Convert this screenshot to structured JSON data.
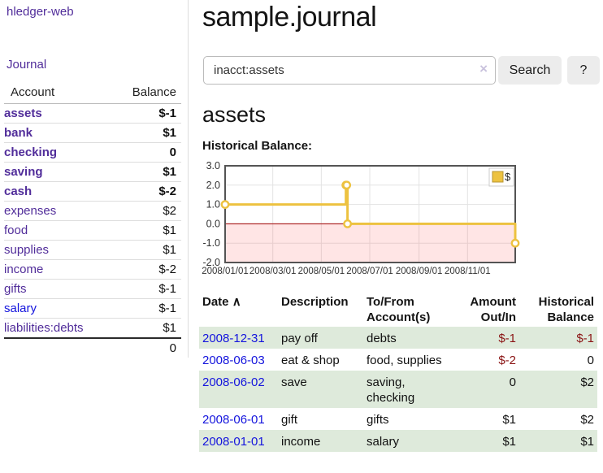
{
  "app": {
    "brand": "hledger-web",
    "nav_journal": "Journal"
  },
  "sidebar": {
    "accounts_table": {
      "col_account": "Account",
      "col_balance": "Balance",
      "rows": [
        {
          "name": "assets",
          "indent": 1,
          "bold": true,
          "balance": "$-1",
          "neg": "strong"
        },
        {
          "name": "bank",
          "indent": 2,
          "bold": true,
          "balance": "$1",
          "neg": ""
        },
        {
          "name": "checking",
          "indent": 3,
          "bold": true,
          "balance": "0",
          "neg": ""
        },
        {
          "name": "saving",
          "indent": 3,
          "bold": true,
          "balance": "$1",
          "neg": ""
        },
        {
          "name": "cash",
          "indent": 2,
          "bold": true,
          "balance": "$-2",
          "neg": "strong"
        },
        {
          "name": "expenses",
          "indent": 1,
          "bold": false,
          "balance": "$2",
          "neg": ""
        },
        {
          "name": "food",
          "indent": 2,
          "bold": false,
          "balance": "$1",
          "neg": ""
        },
        {
          "name": "supplies",
          "indent": 2,
          "bold": false,
          "balance": "$1",
          "neg": ""
        },
        {
          "name": "income",
          "indent": 1,
          "bold": false,
          "balance": "$-2",
          "neg": "soft"
        },
        {
          "name": "gifts",
          "indent": 2,
          "bold": false,
          "balance": "$-1",
          "neg": "soft"
        },
        {
          "name": "salary",
          "indent": 2,
          "bold": false,
          "balance": "$-1",
          "neg": "soft",
          "link_color": "blue"
        },
        {
          "name": "liabilities:debts",
          "indent": 1,
          "bold": false,
          "balance": "$1",
          "neg": ""
        }
      ],
      "total": "0"
    }
  },
  "header": {
    "title": "sample.journal"
  },
  "search": {
    "value": "inacct:assets",
    "clear_label": "×",
    "search_button": "Search",
    "help_button": "?"
  },
  "account_page": {
    "heading": "assets",
    "chart_label": "Historical Balance:"
  },
  "chart_data": {
    "type": "line",
    "title": "Historical Balance",
    "style": "step",
    "series": [
      {
        "name": "$",
        "color": "#edc240",
        "points": [
          [
            "2008-01-01",
            1
          ],
          [
            "2008-06-01",
            2
          ],
          [
            "2008-06-02",
            2
          ],
          [
            "2008-06-03",
            0
          ],
          [
            "2008-12-31",
            -1
          ]
        ]
      }
    ],
    "x_range": [
      "2008-01-01",
      "2008-12-31"
    ],
    "x_ticks": [
      "2008/01/01",
      "2008/03/01",
      "2008/05/01",
      "2008/07/01",
      "2008/09/01",
      "2008/11/01"
    ],
    "y_ticks": [
      3.0,
      2.0,
      1.0,
      0.0,
      -1.0,
      -2.0
    ],
    "ylim": [
      -2,
      3
    ],
    "grid": true,
    "legend_position": "top-right",
    "colors": {
      "grid": "#e3e3e3",
      "border": "#545454",
      "zero_line": "#a00000",
      "negative_region": "rgba(255,70,70,0.14)",
      "legend_border": "#cccccc",
      "marker_fill": "#ffffff",
      "tick_text": "#333333"
    }
  },
  "register": {
    "headers": {
      "date": "Date",
      "description": "Description",
      "tofrom": "To/From Account(s)",
      "amount": "Amount Out/In",
      "balance": "Historical Balance"
    },
    "sort_indicator": "∧",
    "rows": [
      {
        "date": "2008-12-31",
        "description": "pay off",
        "accounts": "debts",
        "amount": "$-1",
        "balance": "$-1"
      },
      {
        "date": "2008-06-03",
        "description": "eat & shop",
        "accounts": "food, supplies",
        "amount": "$-2",
        "balance": "0"
      },
      {
        "date": "2008-06-02",
        "description": "save",
        "accounts": "saving, checking",
        "amount": "0",
        "balance": "$2"
      },
      {
        "date": "2008-06-01",
        "description": "gift",
        "accounts": "gifts",
        "amount": "$1",
        "balance": "$2"
      },
      {
        "date": "2008-01-01",
        "description": "income",
        "accounts": "salary",
        "amount": "$1",
        "balance": "$1"
      }
    ]
  },
  "colors": {
    "link_purple": "#512d9a",
    "link_blue": "#1414dd",
    "negative_strong": "#8b1515",
    "negative_soft": "#b06a6a",
    "row_stripe_green": "#deeadb"
  }
}
